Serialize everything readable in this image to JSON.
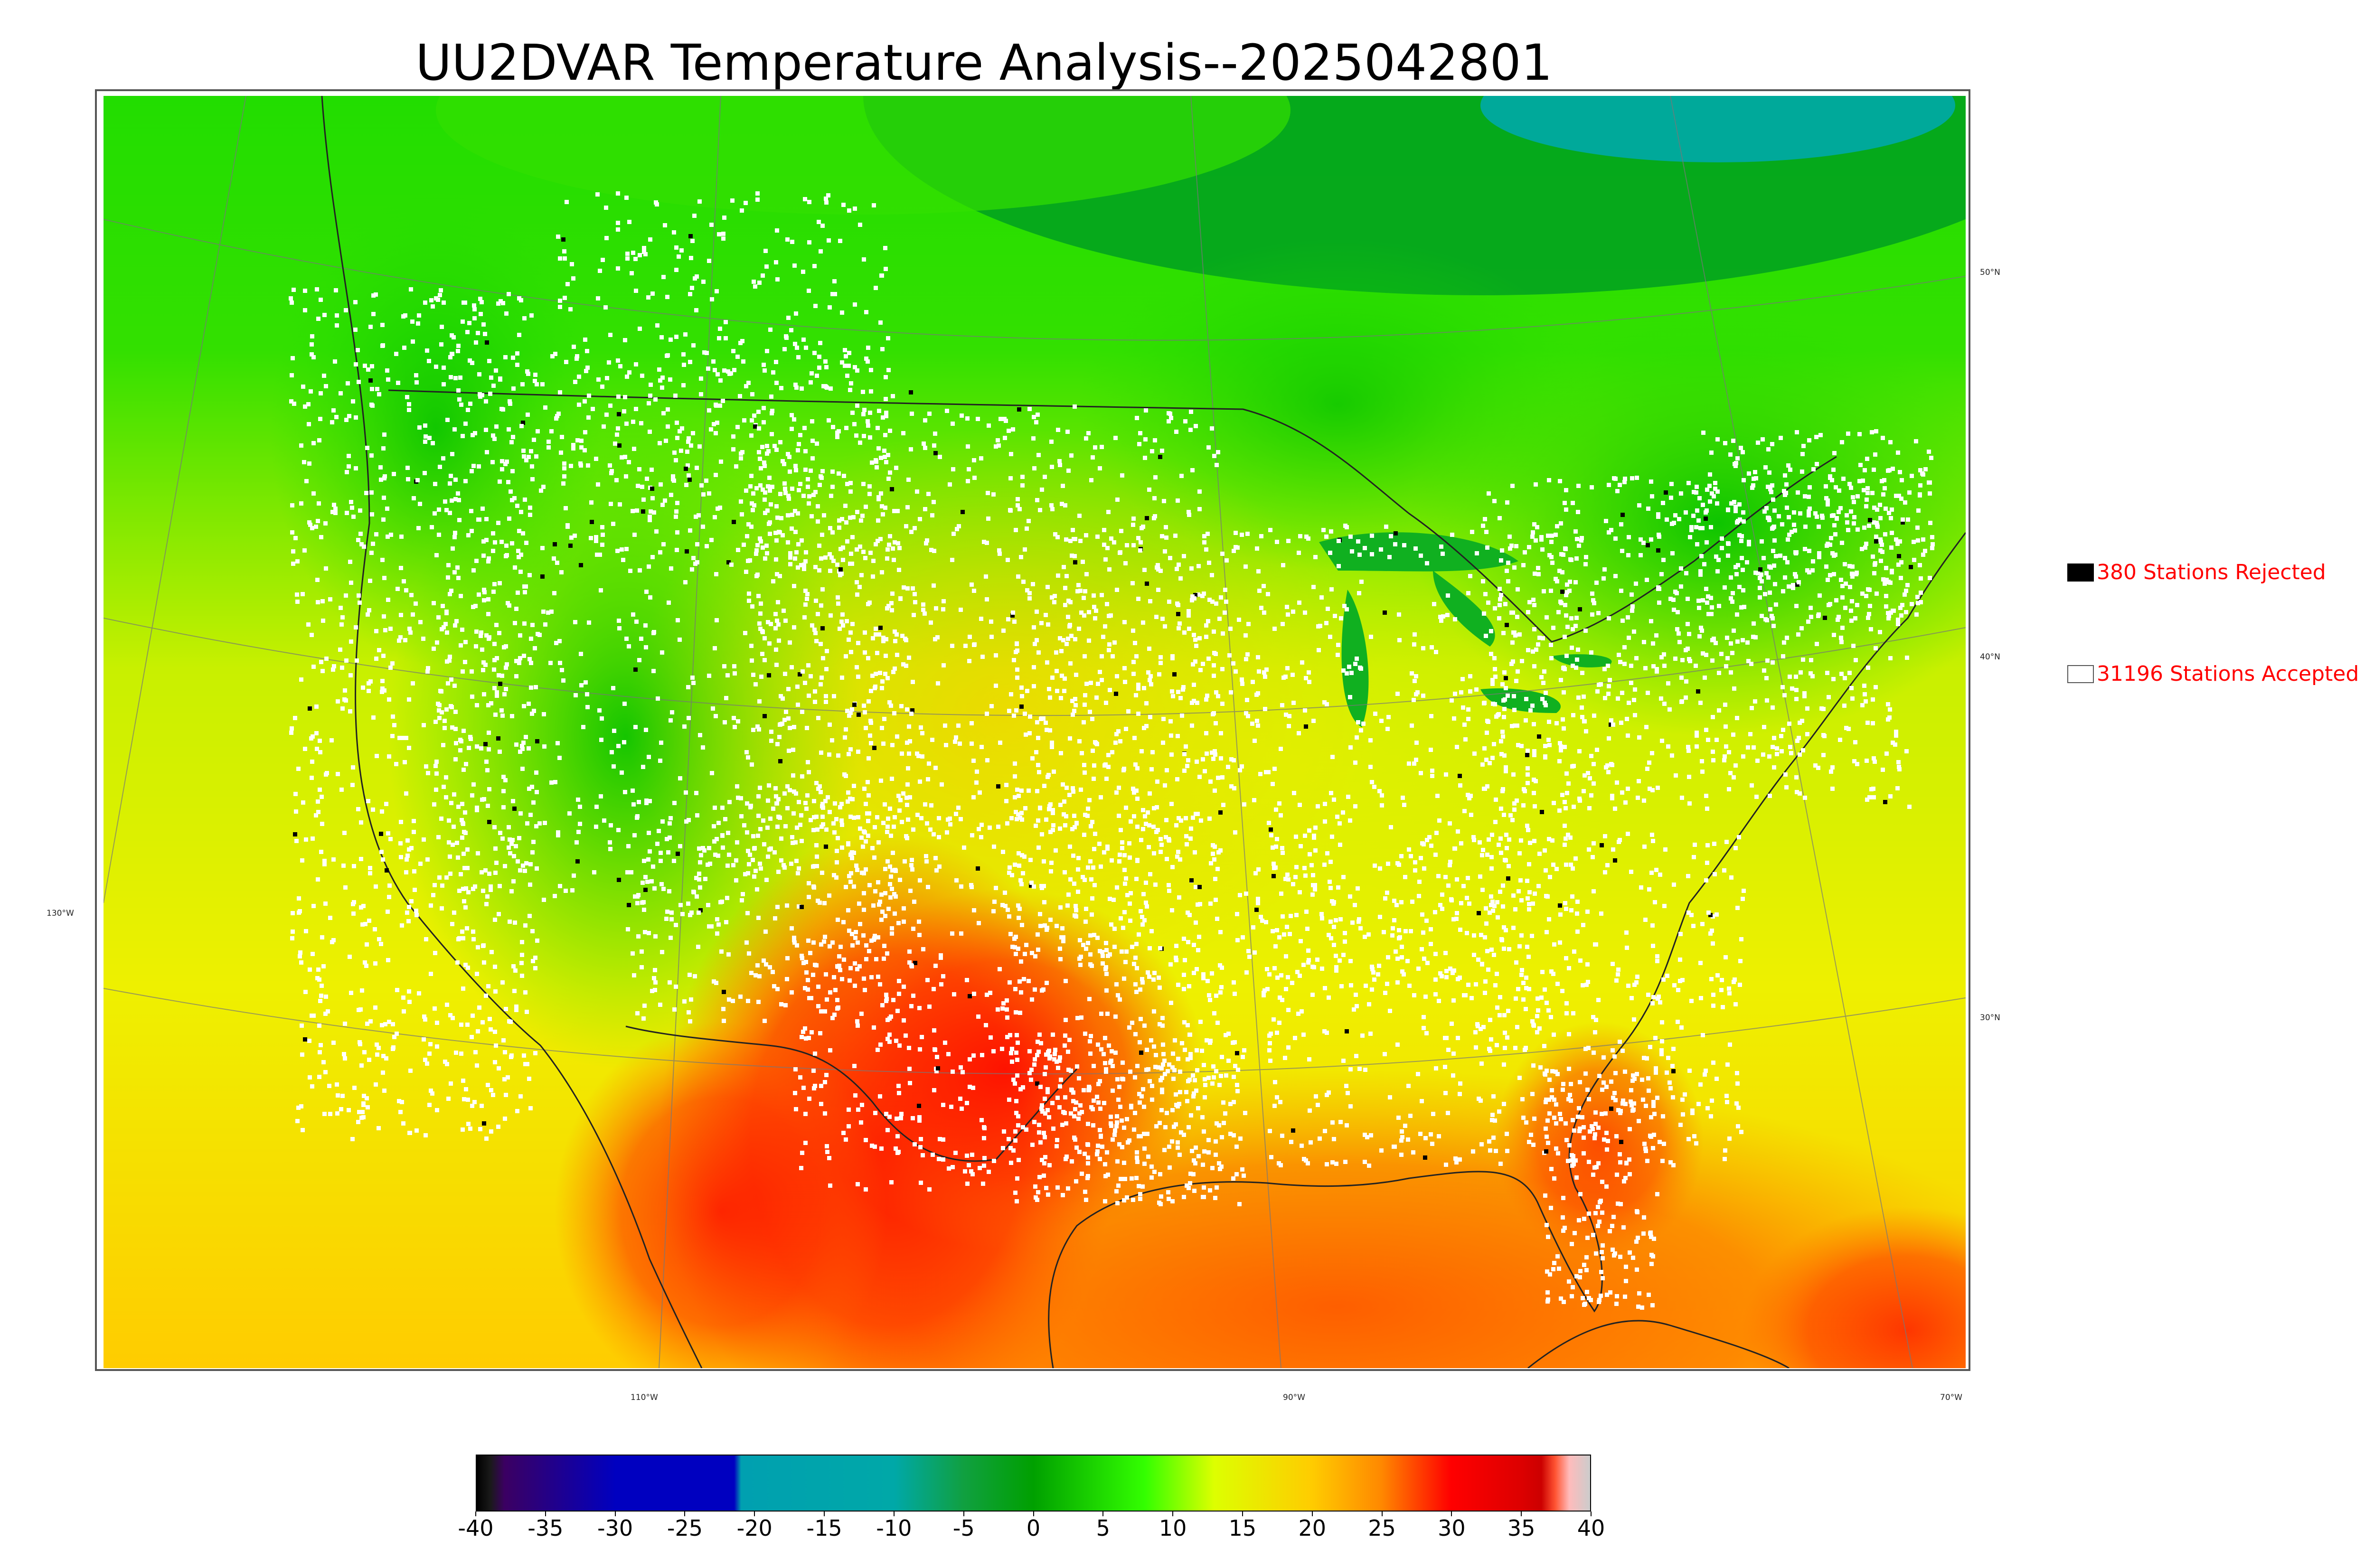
{
  "title": "UU2DVAR Temperature Analysis--2025042801",
  "map": {
    "lat_labels": [
      "50°N",
      "40°N",
      "30°N"
    ],
    "lon_labels": [
      "130°W",
      "110°W",
      "90°W",
      "70°W"
    ]
  },
  "legend": {
    "rejected": {
      "label": "380 Stations Rejected",
      "color": "#000000"
    },
    "accepted": {
      "label": "31196 Stations Accepted",
      "color": "#ffffff"
    },
    "text_color": "#ff0000"
  },
  "colorbar": {
    "ticks": [
      "-40",
      "-35",
      "-30",
      "-25",
      "-20",
      "-15",
      "-10",
      "-5",
      "0",
      "5",
      "10",
      "15",
      "20",
      "25",
      "30",
      "35",
      "40"
    ],
    "stops": [
      {
        "v": -40,
        "color": "#000000"
      },
      {
        "v": -39,
        "color": "#1a1a1a"
      },
      {
        "v": -38,
        "color": "#3b0062"
      },
      {
        "v": -30,
        "color": "#0000c0"
      },
      {
        "v": -21.5,
        "color": "#0000c0"
      },
      {
        "v": -21,
        "color": "#00a0b0"
      },
      {
        "v": -10,
        "color": "#00a8a8"
      },
      {
        "v": -5,
        "color": "#10a040"
      },
      {
        "v": 0,
        "color": "#00a000"
      },
      {
        "v": 8,
        "color": "#33ff00"
      },
      {
        "v": 13,
        "color": "#ddff00"
      },
      {
        "v": 20,
        "color": "#ffcc00"
      },
      {
        "v": 25,
        "color": "#ff8800"
      },
      {
        "v": 30,
        "color": "#ff0000"
      },
      {
        "v": 35,
        "color": "#dd0000"
      },
      {
        "v": 36.5,
        "color": "#cc0000"
      },
      {
        "v": 37.5,
        "color": "#ff5533"
      },
      {
        "v": 38.5,
        "color": "#ffbbbb"
      },
      {
        "v": 40,
        "color": "#cccccc"
      }
    ]
  }
}
